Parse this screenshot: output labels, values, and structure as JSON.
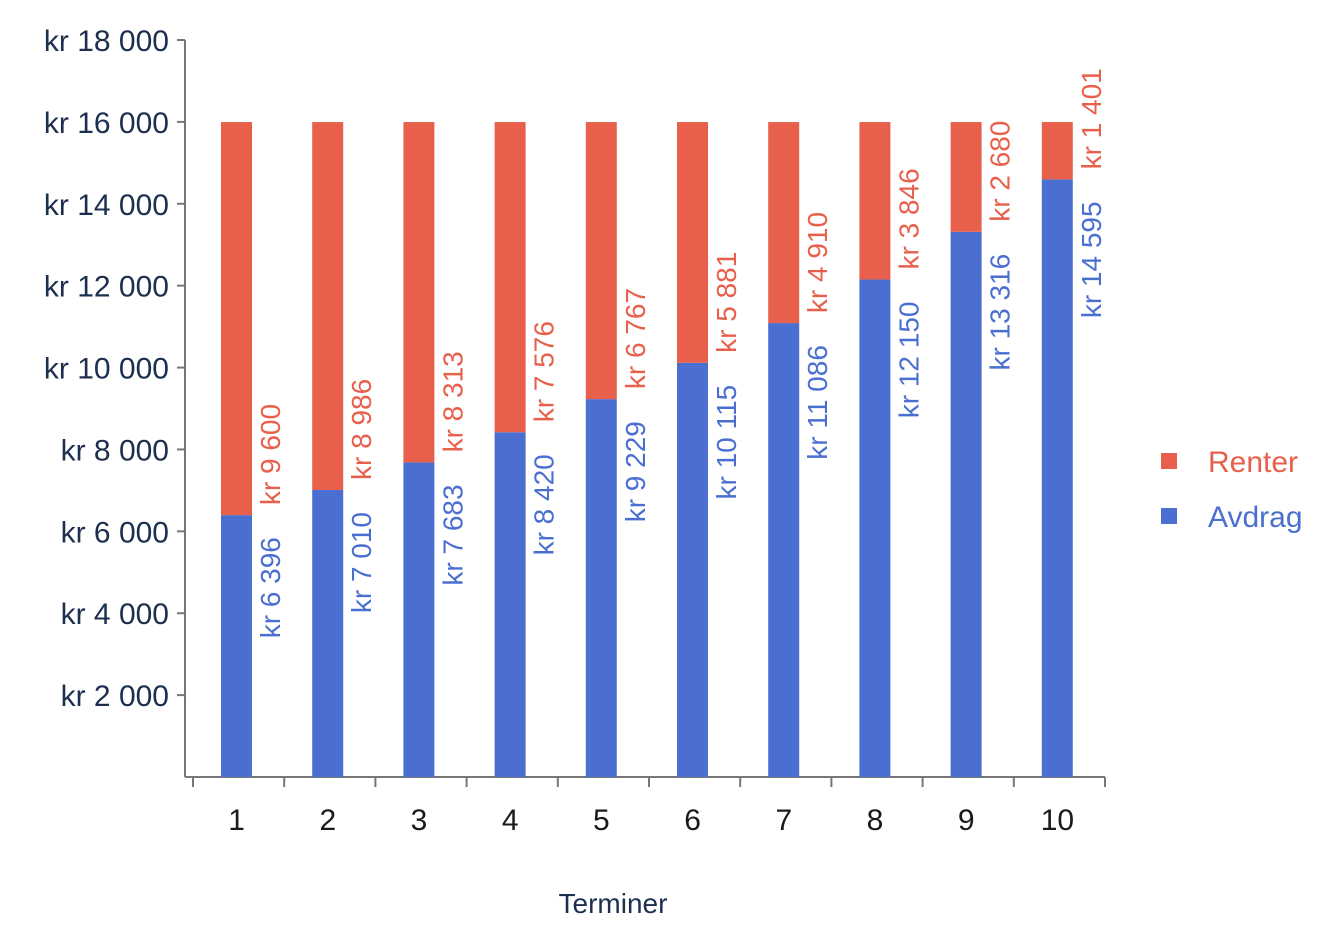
{
  "chart_data": {
    "type": "bar",
    "stacked": true,
    "categories": [
      "1",
      "2",
      "3",
      "4",
      "5",
      "6",
      "7",
      "8",
      "9",
      "10"
    ],
    "series": [
      {
        "name": "Avdrag",
        "color": "#4a6fd1",
        "values": [
          6396,
          7010,
          7683,
          8420,
          9229,
          10115,
          11086,
          12150,
          13316,
          14595
        ],
        "labels": [
          "kr 6 396",
          "kr 7 010",
          "kr 7 683",
          "kr 8 420",
          "kr 9 229",
          "kr 10 115",
          "kr 11 086",
          "kr 12 150",
          "kr 13 316",
          "kr 14 595"
        ]
      },
      {
        "name": "Renter",
        "color": "#e8604c",
        "values": [
          9600,
          8986,
          8313,
          7576,
          6767,
          5881,
          4910,
          3846,
          2680,
          1401
        ],
        "labels": [
          "kr 9 600",
          "kr 8 986",
          "kr 8 313",
          "kr 7 576",
          "kr 6 767",
          "kr 5 881",
          "kr 4 910",
          "kr 3 846",
          "kr 2 680",
          "kr 1 401"
        ]
      }
    ],
    "yticks": [
      {
        "value": 2000,
        "label": "kr 2 000"
      },
      {
        "value": 4000,
        "label": "kr 4 000"
      },
      {
        "value": 6000,
        "label": "kr 6 000"
      },
      {
        "value": 8000,
        "label": "kr 8 000"
      },
      {
        "value": 10000,
        "label": "kr 10 000"
      },
      {
        "value": 12000,
        "label": "kr 12 000"
      },
      {
        "value": 14000,
        "label": "kr 14 000"
      },
      {
        "value": 16000,
        "label": "kr 16 000"
      },
      {
        "value": 18000,
        "label": "kr 18 000"
      }
    ],
    "xlabel": "Terminer",
    "ylabel": "",
    "ylim": [
      0,
      18000
    ],
    "grid": false,
    "legend_position": "right",
    "legend": [
      {
        "name": "Renter",
        "color": "#e8604c"
      },
      {
        "name": "Avdrag",
        "color": "#4a6fd1"
      }
    ]
  }
}
